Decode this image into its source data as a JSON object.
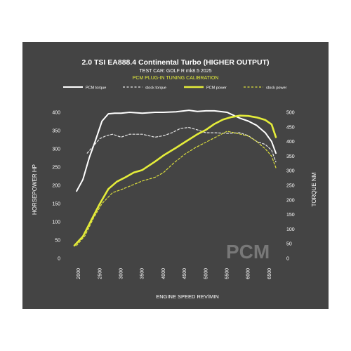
{
  "chart_data": {
    "type": "line",
    "title": "2.0 TSI EA888.4 Continental Turbo (HIGHER OUTPUT)",
    "subtitle": "TEST CAR: GOLF R mk8.5 2025",
    "calibration_label": "PCM PLUG-IN TUNING CALIBRATION",
    "watermark": "PCM",
    "xlabel": "ENGINE SPEED REV/MIN",
    "ylabel_left": "HORSEPOWER HP",
    "ylabel_right": "TORQUE NM",
    "xlim": [
      1800,
      6700
    ],
    "ylim_left": [
      0,
      400
    ],
    "ylim_right": [
      0,
      500
    ],
    "x_ticks": [
      2000,
      2500,
      3000,
      3500,
      4000,
      4500,
      5000,
      5500,
      6000,
      6500
    ],
    "y_ticks_left": [
      0,
      50,
      100,
      150,
      200,
      250,
      300,
      350,
      400
    ],
    "y_ticks_right": [
      0,
      50,
      100,
      150,
      200,
      250,
      300,
      350,
      400,
      450,
      500
    ],
    "legend": [
      "PCM torque",
      "stock torque",
      "PCM power",
      "stock power"
    ],
    "grid": false,
    "colors": {
      "background": "#444444",
      "pcm_torque": "#ffffff",
      "stock_torque": "#e6e6e6",
      "pcm_power": "#e4ec3a",
      "stock_power": "#dde03c",
      "title": "#ffffff",
      "calibration": "#e4ec3a"
    },
    "series": [
      {
        "name": "PCM torque",
        "axis": "right",
        "style": "solid",
        "x": [
          1950,
          2100,
          2250,
          2400,
          2550,
          2700,
          2850,
          3000,
          3200,
          3500,
          3800,
          4000,
          4300,
          4600,
          4800,
          5000,
          5200,
          5500,
          5800,
          6000,
          6200,
          6400,
          6550,
          6650
        ],
        "y": [
          230,
          270,
          345,
          405,
          470,
          495,
          497,
          497,
          500,
          497,
          500,
          500,
          502,
          507,
          503,
          505,
          505,
          500,
          480,
          470,
          455,
          430,
          400,
          360
        ]
      },
      {
        "name": "stock torque",
        "axis": "right",
        "style": "dashed",
        "x": [
          2200,
          2350,
          2500,
          2650,
          2800,
          3000,
          3200,
          3500,
          3800,
          4000,
          4200,
          4400,
          4600,
          4800,
          5000,
          5200,
          5500,
          5800,
          6000,
          6200,
          6400,
          6550,
          6650
        ],
        "y": [
          360,
          385,
          410,
          420,
          425,
          415,
          425,
          425,
          415,
          420,
          430,
          445,
          448,
          440,
          430,
          430,
          428,
          430,
          420,
          400,
          390,
          370,
          330
        ]
      },
      {
        "name": "PCM power",
        "axis": "left",
        "style": "solid",
        "x": [
          1900,
          2100,
          2300,
          2500,
          2700,
          2900,
          3100,
          3300,
          3500,
          3800,
          4000,
          4300,
          4500,
          4800,
          5000,
          5200,
          5400,
          5600,
          5800,
          6000,
          6200,
          6400,
          6550,
          6650
        ],
        "y": [
          35,
          60,
          105,
          150,
          190,
          210,
          222,
          235,
          242,
          265,
          282,
          303,
          318,
          340,
          352,
          368,
          380,
          387,
          391,
          390,
          386,
          379,
          367,
          332
        ]
      },
      {
        "name": "stock power",
        "axis": "left",
        "style": "dashed",
        "x": [
          1950,
          2150,
          2350,
          2550,
          2800,
          3000,
          3250,
          3500,
          3800,
          4000,
          4250,
          4500,
          4750,
          5000,
          5250,
          5500,
          5750,
          6000,
          6200,
          6400,
          6550,
          6650
        ],
        "y": [
          35,
          62,
          110,
          150,
          180,
          188,
          200,
          212,
          222,
          235,
          262,
          285,
          303,
          318,
          333,
          348,
          342,
          335,
          320,
          300,
          280,
          248
        ]
      }
    ]
  }
}
